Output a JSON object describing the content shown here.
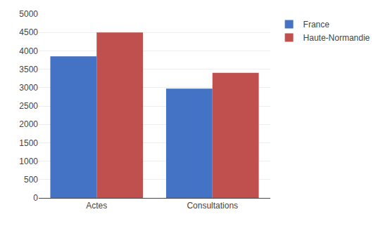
{
  "chart_data": {
    "type": "bar",
    "categories": [
      "Actes",
      "Consultations"
    ],
    "series": [
      {
        "name": "France",
        "color": "#4472C4",
        "values": [
          3850,
          2970
        ]
      },
      {
        "name": "Haute-Normandie",
        "color": "#C0504D",
        "values": [
          4500,
          3400
        ]
      }
    ],
    "ylim": [
      0,
      5000
    ],
    "yticks": [
      0,
      500,
      1000,
      1500,
      2000,
      2500,
      3000,
      3500,
      4000,
      4500,
      5000
    ],
    "grid": true,
    "legend": "right"
  }
}
